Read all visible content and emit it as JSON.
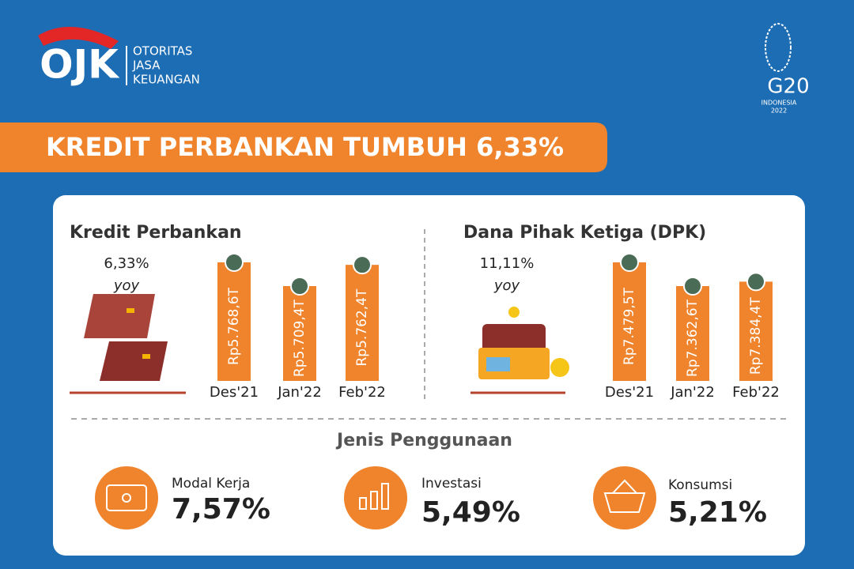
{
  "logo": {
    "text": "OJK",
    "lines": [
      "OTORITAS",
      "JASA",
      "KEUANGAN"
    ]
  },
  "g20": {
    "text": "G20",
    "lines": [
      "INDONESIA",
      "2022"
    ]
  },
  "title": "KREDIT PERBANKAN TUMBUH 6,33%",
  "chart_data": [
    {
      "type": "bar",
      "title": "Kredit Perbankan",
      "annotation": "6,33%",
      "annotation_sub": "yoy",
      "categories": [
        "Des'21",
        "Jan'22",
        "Feb'22"
      ],
      "values": [
        5768.6,
        5709.4,
        5762.4
      ],
      "value_labels": [
        "Rp5.768,6T",
        "Rp5.709,4T",
        "Rp5.762,4T"
      ],
      "color": "#f0842c"
    },
    {
      "type": "bar",
      "title": "Dana Pihak Ketiga (DPK)",
      "annotation": "11,11%",
      "annotation_sub": "yoy",
      "categories": [
        "Des'21",
        "Jan'22",
        "Feb'22"
      ],
      "values": [
        7479.5,
        7362.6,
        7384.4
      ],
      "value_labels": [
        "Rp7.479,5T",
        "Rp7.362,6T",
        "Rp7.384,4T"
      ],
      "color": "#f0842c"
    }
  ],
  "usage": {
    "title": "Jenis Penggunaan",
    "items": [
      {
        "label": "Modal Kerja",
        "value": "7,57%"
      },
      {
        "label": "Investasi",
        "value": "5,49%"
      },
      {
        "label": "Konsumsi",
        "value": "5,21%"
      }
    ]
  }
}
